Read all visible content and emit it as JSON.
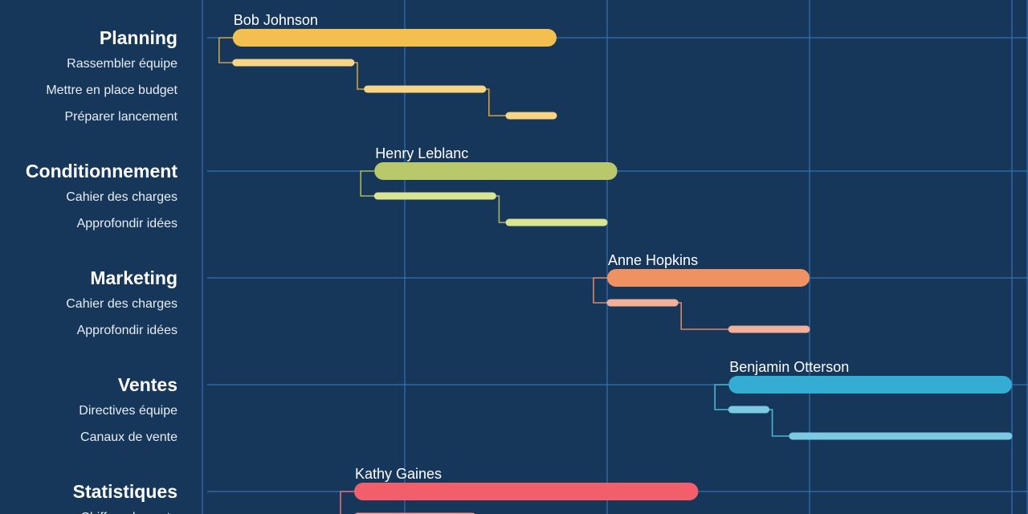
{
  "chart_data": {
    "type": "gantt",
    "groups": [
      {
        "name": "Planning",
        "owner": "Bob Johnson",
        "color": "#f3c04f",
        "sub_color": "#f8d585",
        "connector_color": "#c9a24a",
        "range": [
          0.15,
          1.75
        ],
        "tasks": [
          {
            "name": "Rassembler équipe",
            "range": [
              0.15,
              0.75
            ]
          },
          {
            "name": "Mettre en place budget",
            "range": [
              0.8,
              1.4
            ]
          },
          {
            "name": "Préparer lancement",
            "range": [
              1.5,
              1.75
            ]
          }
        ]
      },
      {
        "name": "Conditionnement",
        "owner": "Henry Leblanc",
        "color": "#b9c86a",
        "sub_color": "#d9e590",
        "connector_color": "#a7b460",
        "range": [
          0.85,
          2.05
        ],
        "tasks": [
          {
            "name": "Cahier des charges",
            "range": [
              0.85,
              1.45
            ]
          },
          {
            "name": "Approfondir idées",
            "range": [
              1.5,
              2.0
            ]
          }
        ]
      },
      {
        "name": "Marketing",
        "owner": "Anne Hopkins",
        "color": "#ef9160",
        "sub_color": "#f2b09a",
        "connector_color": "#d8896a",
        "range": [
          2.0,
          3.0
        ],
        "tasks": [
          {
            "name": "Cahier des charges",
            "range": [
              2.0,
              2.35
            ]
          },
          {
            "name": "Approfondir idées",
            "range": [
              2.6,
              3.0
            ]
          }
        ]
      },
      {
        "name": "Ventes",
        "owner": "Benjamin Otterson",
        "color": "#34acd3",
        "sub_color": "#7cc9e3",
        "connector_color": "#4fb3d4",
        "range": [
          2.6,
          4.0
        ],
        "tasks": [
          {
            "name": "Directives équipe",
            "range": [
              2.6,
              2.8
            ]
          },
          {
            "name": "Canaux de vente",
            "range": [
              2.9,
              4.0
            ]
          }
        ]
      },
      {
        "name": "Statistiques",
        "owner": "Kathy Gaines",
        "color": "#f25f6b",
        "sub_color": "#f39a9f",
        "connector_color": "#e0707a",
        "range": [
          0.75,
          2.45
        ],
        "tasks": [
          {
            "name": "Chiffres de vente",
            "range": [
              0.75,
              1.35
            ]
          }
        ]
      }
    ],
    "grid": true
  }
}
